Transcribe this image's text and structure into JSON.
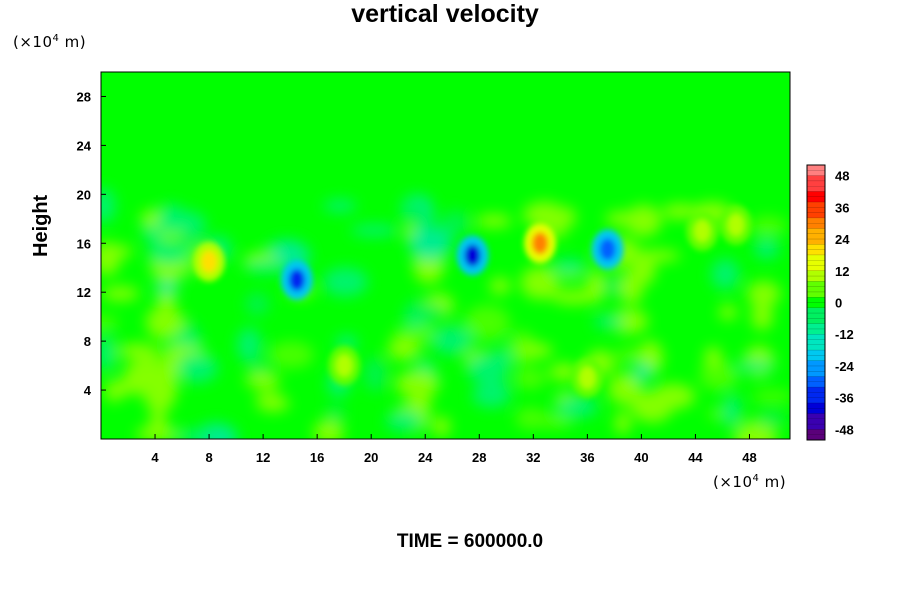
{
  "chart_data": {
    "type": "heatmap",
    "title": "vertical velocity",
    "ylabel": "Height",
    "x_unit": {
      "prefix": "(×10",
      "exp": "4",
      "suffix": " m)"
    },
    "y_unit": {
      "prefix": "(×10",
      "exp": "4",
      "suffix": " m)"
    },
    "x_ticks": [
      4,
      8,
      12,
      16,
      20,
      24,
      28,
      32,
      36,
      40,
      44,
      48
    ],
    "y_ticks": [
      4,
      8,
      12,
      16,
      20,
      24,
      28
    ],
    "xlim": [
      0,
      51
    ],
    "ylim": [
      0,
      30
    ],
    "colorbar": {
      "ticks": [
        48,
        36,
        24,
        12,
        0,
        -12,
        -24,
        -36,
        -48
      ],
      "range": [
        -52,
        52
      ],
      "colors_low_to_high": [
        "#5a007a",
        "#3a00b0",
        "#0000d8",
        "#0028f0",
        "#0060ff",
        "#0098ff",
        "#00c8f0",
        "#00e6c0",
        "#00f090",
        "#00f060",
        "#00ff00",
        "#60ff00",
        "#b0ff00",
        "#e6ff00",
        "#ffe000",
        "#ffb000",
        "#ff8000",
        "#ff4000",
        "#ff0000",
        "#ff4040",
        "#ff8080"
      ]
    },
    "features": [
      {
        "x": 27.5,
        "y": 15.0,
        "value": -40
      },
      {
        "x": 14.5,
        "y": 13.0,
        "value": -34
      },
      {
        "x": 37.5,
        "y": 15.5,
        "value": -32
      },
      {
        "x": 32.5,
        "y": 16.0,
        "value": 30
      },
      {
        "x": 8.0,
        "y": 14.5,
        "value": 20
      },
      {
        "x": 47.0,
        "y": 17.5,
        "value": 10
      },
      {
        "x": 44.5,
        "y": 17.0,
        "value": 10
      },
      {
        "x": 18.0,
        "y": 6.0,
        "value": 8
      },
      {
        "x": 36.0,
        "y": 5.0,
        "value": 8
      }
    ]
  },
  "footer": {
    "time_label": "TIME = 600000.0"
  }
}
